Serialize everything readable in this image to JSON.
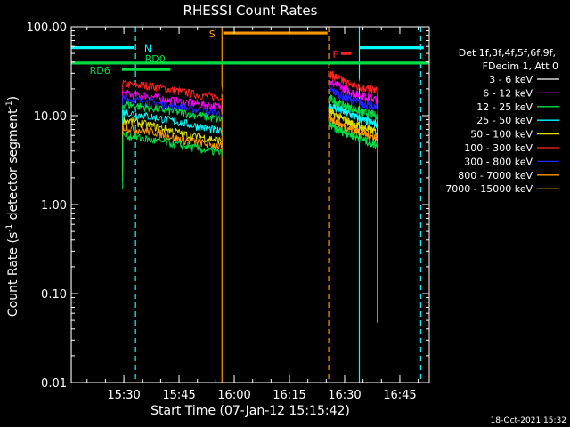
{
  "chart_data": {
    "type": "line",
    "title": "RHESSI Count Rates",
    "xlabel": "Start Time (07-Jan-12 15:15:42)",
    "ylabel_main": "Count Rate (s",
    "ylabel_sup1": "-1",
    "ylabel_mid": " detector segment",
    "ylabel_sup2": "-1",
    "ylabel_end": ")",
    "y_scale": "log",
    "ylim": [
      0.01,
      100
    ],
    "xlim": [
      "15:15:42",
      "16:53:00"
    ],
    "x_ticks": [
      "15:30",
      "15:45",
      "16:00",
      "16:15",
      "16:30",
      "16:45"
    ],
    "y_ticks": [
      "0.01",
      "0.10",
      "1.00",
      "10.00",
      "100.00"
    ],
    "timestamp": "18-Oct-2021 15:32",
    "legend": {
      "line1": "Det 1f,3f,4f,5f,6f,9f,",
      "line2": "FDecim 1, Att 0",
      "entries": [
        {
          "label": "3 - 6 keV",
          "color": "#ffffff"
        },
        {
          "label": "6 - 12 keV",
          "color": "#ff00ff"
        },
        {
          "label": "12 - 25 keV",
          "color": "#00dd44"
        },
        {
          "label": "25 - 50 keV",
          "color": "#00ffff"
        },
        {
          "label": "50 - 100 keV",
          "color": "#dddd00"
        },
        {
          "label": "100 - 300 keV",
          "color": "#ff2222"
        },
        {
          "label": "300 - 800 keV",
          "color": "#2222ff"
        },
        {
          "label": "800 - 7000 keV",
          "color": "#ff9900"
        },
        {
          "label": "7000 - 15000 keV",
          "color": "#aa8800"
        }
      ]
    },
    "draw_colors": {
      "black": "#000000",
      "green": "#00dd44",
      "cyan": "#00ffff",
      "yellow": "#dddd00",
      "red": "#ff2222",
      "blue": "#2222ff",
      "orange": "#ff9900",
      "magenta": "#ff00ff"
    },
    "segments": [
      {
        "start": "15:29:40",
        "end": "15:56:40"
      },
      {
        "start": "16:25:40",
        "end": "16:38:50"
      }
    ],
    "series": [
      {
        "color": "black",
        "levels": [
          20,
          19.5,
          20,
          21,
          23,
          26,
          24,
          21,
          19.5,
          19
        ],
        "levels2": [
          34,
          30,
          26,
          26,
          24,
          22,
          20
        ]
      },
      {
        "color": "red",
        "levels": [
          23,
          22,
          22,
          21,
          20,
          19,
          18,
          17,
          16.5,
          16
        ],
        "levels2": [
          30,
          27,
          24,
          22,
          21,
          20,
          19
        ]
      },
      {
        "color": "magenta",
        "levels": [
          18,
          17,
          17,
          16,
          15,
          14.5,
          14,
          13.5,
          13,
          12.5
        ],
        "levels2": [
          24,
          22,
          20,
          18,
          17,
          16,
          15
        ]
      },
      {
        "color": "blue",
        "levels": [
          16,
          15,
          14.5,
          14,
          13,
          12.5,
          12,
          11.5,
          11,
          10.5
        ],
        "levels2": [
          20,
          18,
          16,
          15,
          14,
          13,
          12
        ]
      },
      {
        "color": "green",
        "levels": [
          13.5,
          13,
          12.5,
          12,
          11.5,
          11,
          10.5,
          10,
          9.5,
          9
        ],
        "levels2": [
          16,
          14,
          13,
          12,
          11,
          10.5,
          10
        ]
      },
      {
        "color": "cyan",
        "levels": [
          11,
          10.5,
          10,
          9.5,
          9,
          8.5,
          8,
          7.5,
          7,
          6.5
        ],
        "levels2": [
          13,
          12,
          11,
          10,
          9,
          8.5,
          8
        ]
      },
      {
        "color": "yellow",
        "levels": [
          9,
          8.5,
          8,
          7.5,
          7,
          6.5,
          6,
          5.8,
          5.5,
          5.2
        ],
        "levels2": [
          11,
          10,
          9,
          8,
          7.5,
          7,
          6.5
        ]
      },
      {
        "color": "orange",
        "levels": [
          7.5,
          7,
          6.8,
          6.5,
          6,
          5.5,
          5.2,
          5,
          4.7,
          4.5
        ],
        "levels2": [
          9.5,
          8.5,
          7.5,
          7,
          6.5,
          6,
          5.5
        ]
      },
      {
        "color": "green",
        "levels": [
          6,
          5.8,
          5.5,
          5.2,
          5,
          4.7,
          4.5,
          4.2,
          4,
          3.8
        ],
        "levels2": [
          8,
          7,
          6.5,
          6,
          5.5,
          5,
          4.7
        ]
      }
    ],
    "vertical_lines": [
      {
        "time": "15:15:42",
        "color": "cyan",
        "style": "solid"
      },
      {
        "time": "15:33:10",
        "color": "cyan",
        "style": "dash"
      },
      {
        "time": "15:56:40",
        "color": "orange",
        "style": "solid"
      },
      {
        "time": "16:25:40",
        "color": "orange",
        "style": "dash"
      },
      {
        "time": "16:34:00",
        "color": "cyan",
        "style": "solid"
      },
      {
        "time": "16:50:40",
        "color": "cyan",
        "style": "dash"
      }
    ],
    "flags": [
      {
        "label": "N",
        "color": "cyan",
        "spans": [
          [
            "15:15:42",
            "15:32:40"
          ],
          [
            "16:34:00",
            "16:51:30"
          ]
        ],
        "value": 58,
        "label_at": "15:36:30",
        "label_dy": 0
      },
      {
        "label": "S",
        "color": "orange",
        "spans": [
          [
            "15:57:00",
            "16:25:20"
          ]
        ],
        "value": 85,
        "label_at": "15:54:00",
        "label_dy": 0
      },
      {
        "label": "F",
        "color": "red",
        "spans": [
          [
            "16:29:00",
            "16:31:50"
          ]
        ],
        "value": 50,
        "label_at": "16:27:30",
        "label_dy": 0
      },
      {
        "label": "RD0",
        "color": "green",
        "spans": [
          [
            "15:15:42",
            "16:53:00"
          ]
        ],
        "value": 39,
        "label_at": "15:38:30",
        "label_dy": -6
      },
      {
        "label": "RD6",
        "color": "green",
        "spans": [
          [
            "15:29:30",
            "15:42:40"
          ]
        ],
        "value": 33,
        "label_at": "15:23:30",
        "label_dy": 0
      }
    ]
  }
}
